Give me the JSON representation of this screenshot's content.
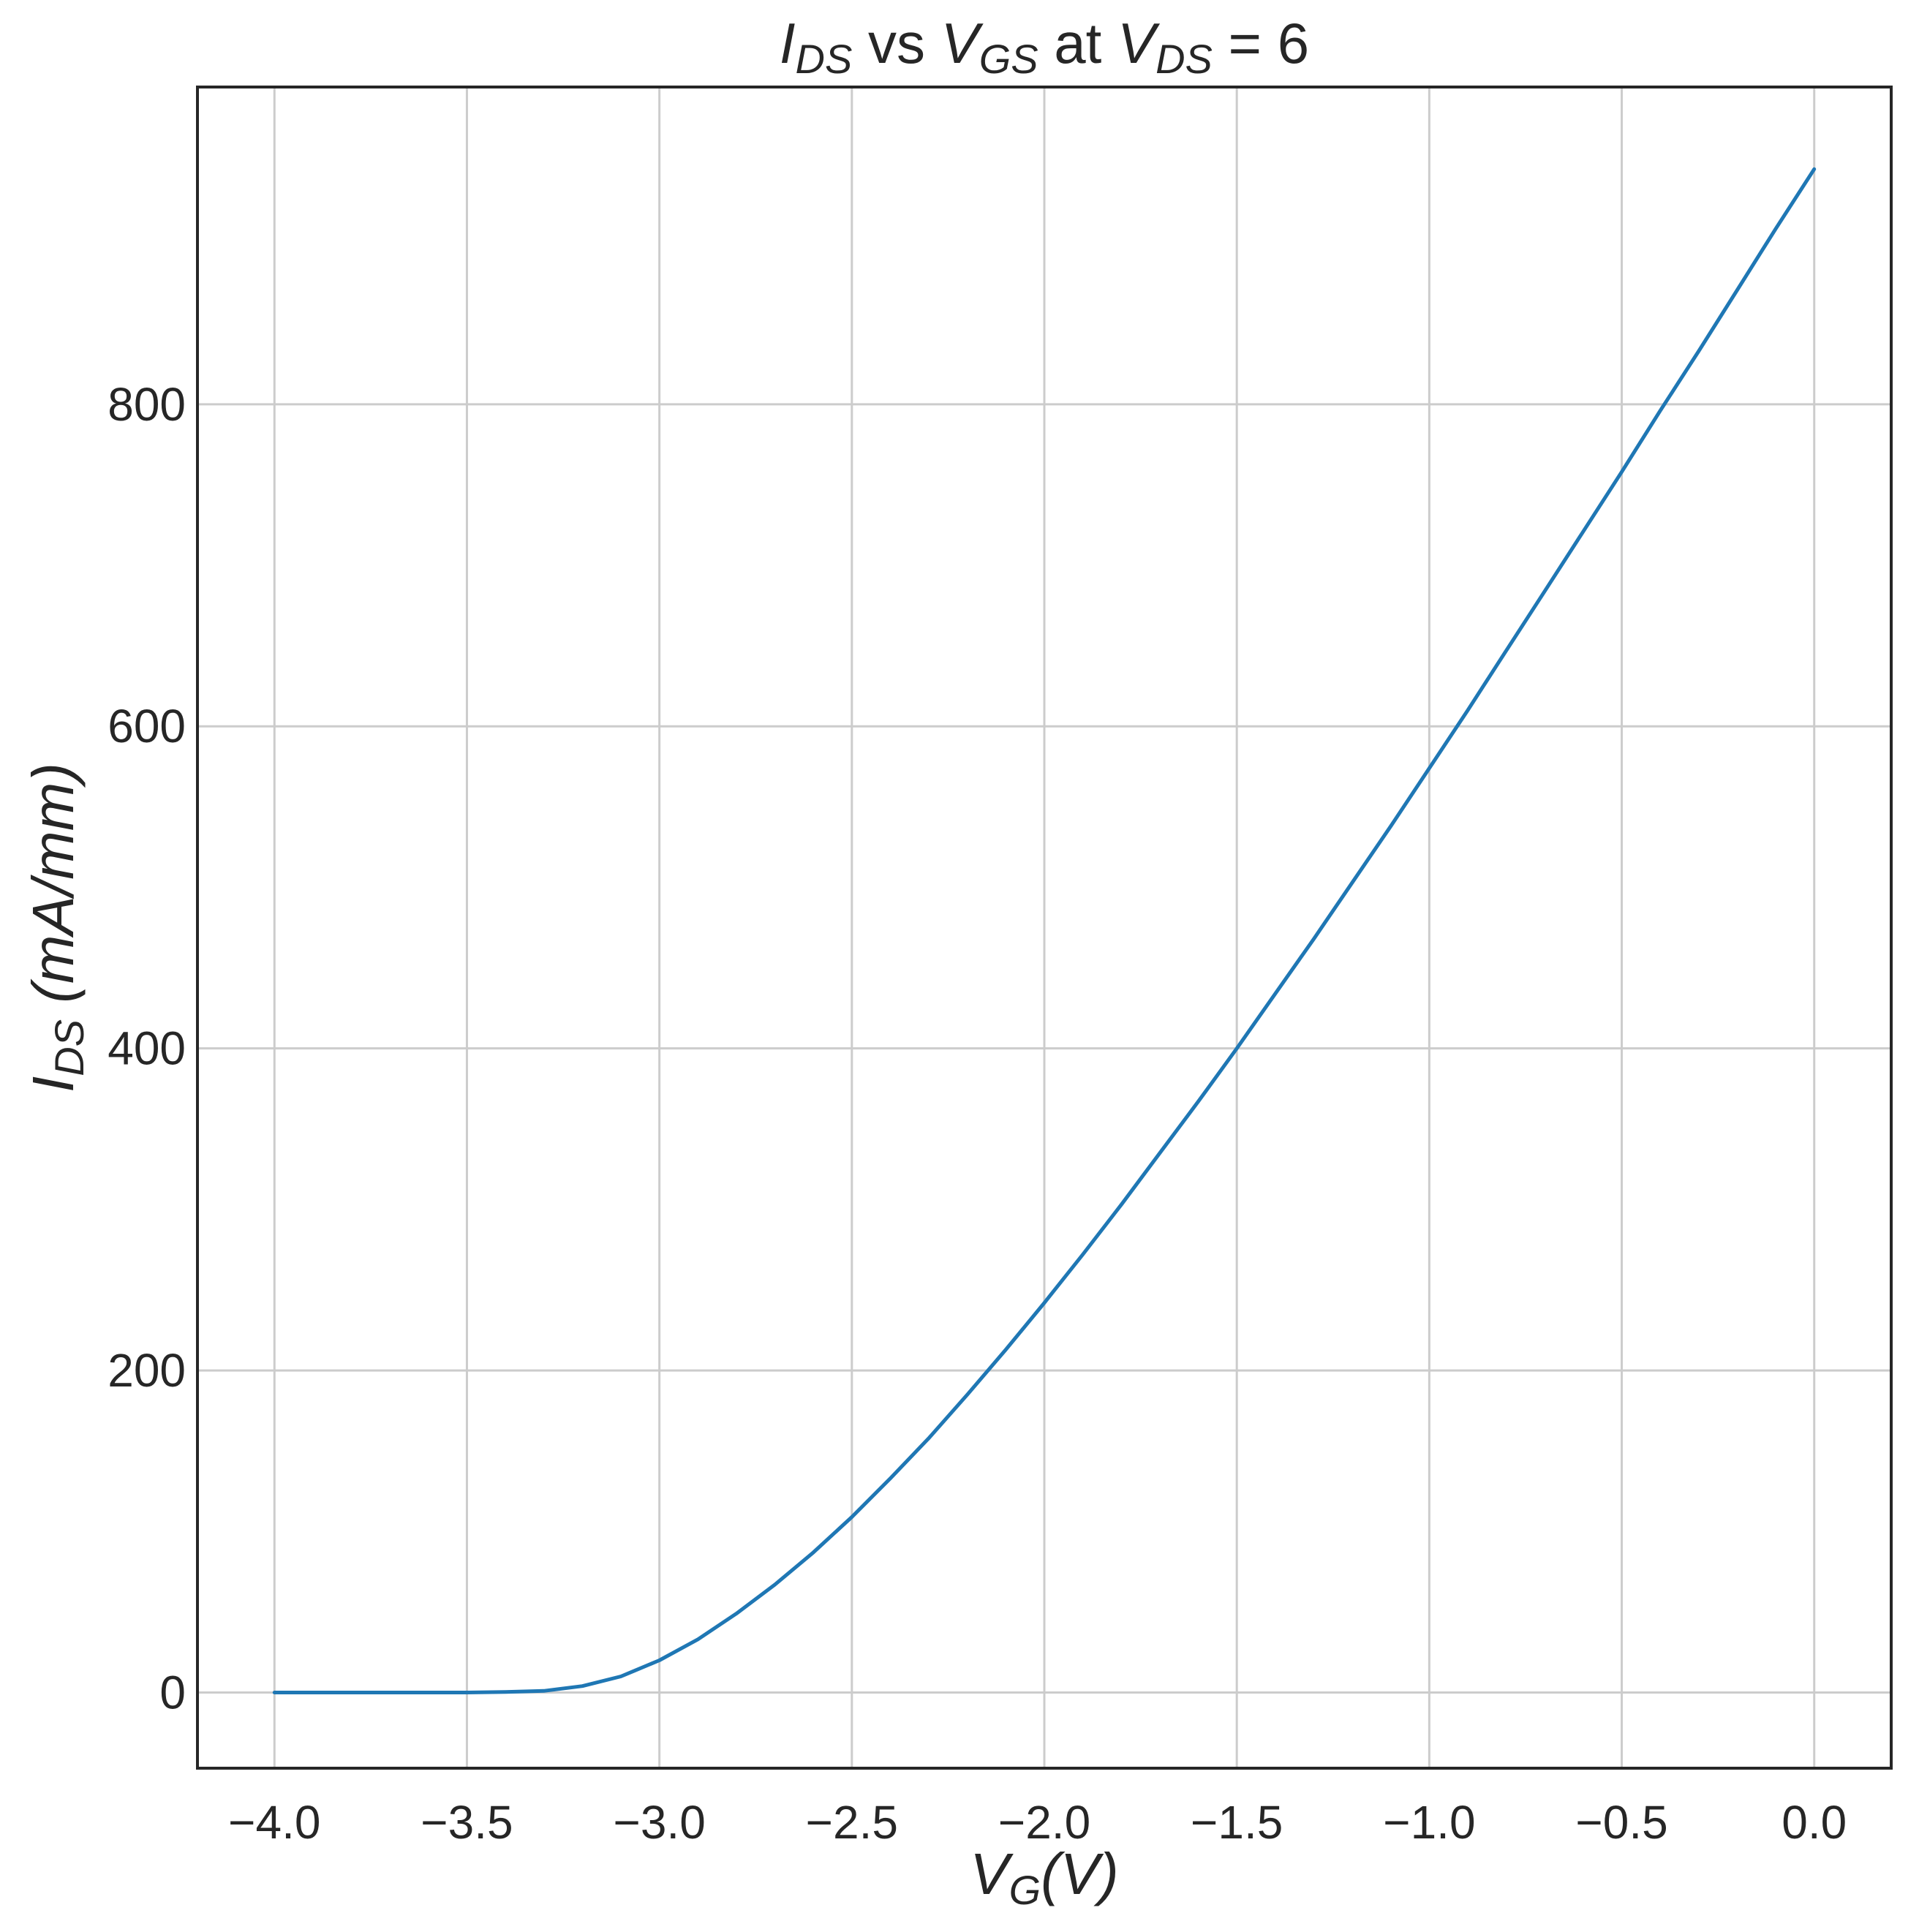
{
  "chart_data": {
    "type": "line",
    "title": {
      "parts": [
        {
          "text": "I",
          "italic": true
        },
        {
          "text": "DS",
          "italic": true,
          "sub": true
        },
        {
          "text": " vs ",
          "italic": false
        },
        {
          "text": "V",
          "italic": true
        },
        {
          "text": "GS",
          "italic": true,
          "sub": true
        },
        {
          "text": " at ",
          "italic": false
        },
        {
          "text": "V",
          "italic": true
        },
        {
          "text": "DS",
          "italic": true,
          "sub": true
        },
        {
          "text": " = 6",
          "italic": false
        }
      ]
    },
    "xlabel": {
      "parts": [
        {
          "text": "V",
          "italic": true
        },
        {
          "text": "G",
          "italic": true,
          "sub": true
        },
        {
          "text": "(V)",
          "italic": true
        }
      ]
    },
    "ylabel": {
      "parts": [
        {
          "text": "I",
          "italic": true
        },
        {
          "text": "DS",
          "italic": true,
          "sub": true
        },
        {
          "text": " (mA/mm)",
          "italic": true
        }
      ]
    },
    "xlim": [
      -4.2,
      0.2
    ],
    "ylim": [
      -47,
      997
    ],
    "xticks": [
      -4.0,
      -3.5,
      -3.0,
      -2.5,
      -2.0,
      -1.5,
      -1.0,
      -0.5,
      0.0
    ],
    "xtick_labels": [
      "−4.0",
      "−3.5",
      "−3.0",
      "−2.5",
      "−2.0",
      "−1.5",
      "−1.0",
      "−0.5",
      "0.0"
    ],
    "yticks": [
      0,
      200,
      400,
      600,
      800
    ],
    "ytick_labels": [
      "0",
      "200",
      "400",
      "600",
      "800"
    ],
    "grid": true,
    "series": [
      {
        "color": "#1f77b4",
        "x": [
          -4.0,
          -3.9,
          -3.8,
          -3.7,
          -3.6,
          -3.5,
          -3.4,
          -3.3,
          -3.2,
          -3.1,
          -3.0,
          -2.9,
          -2.8,
          -2.7,
          -2.6,
          -2.5,
          -2.4,
          -2.3,
          -2.2,
          -2.1,
          -2.0,
          -1.9,
          -1.8,
          -1.7,
          -1.6,
          -1.5,
          -1.4,
          -1.3,
          -1.2,
          -1.1,
          -1.0,
          -0.9,
          -0.8,
          -0.7,
          -0.6,
          -0.5,
          -0.4,
          -0.3,
          -0.2,
          -0.1,
          0.0
        ],
        "y": [
          0,
          0,
          0,
          0,
          0,
          0,
          0.3,
          1,
          4,
          10,
          20,
          33,
          49,
          67,
          87,
          109,
          133,
          158,
          185,
          213,
          242,
          272,
          303,
          335,
          367,
          400,
          434,
          468,
          503,
          538,
          574,
          610,
          647,
          684,
          721,
          758,
          796,
          833,
          871,
          909,
          946
        ]
      }
    ]
  }
}
